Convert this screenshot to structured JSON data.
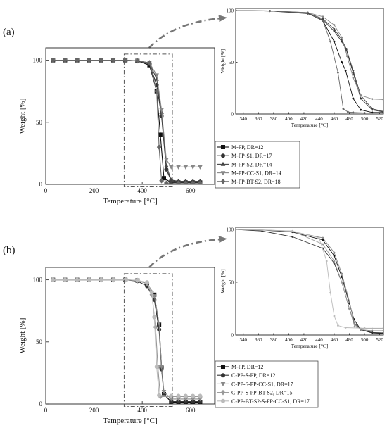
{
  "figure": {
    "panel_labels": [
      "(a)",
      "(b)"
    ]
  },
  "chart_data": [
    {
      "type": "line",
      "panel": "(a)",
      "xlabel": "Temperature [°C]",
      "ylabel": "Weight [%]",
      "xlim": [
        0,
        700
      ],
      "ylim": [
        0,
        110
      ],
      "xticks": [
        0,
        200,
        400,
        600
      ],
      "yticks": [
        0,
        50,
        100
      ],
      "legend_position": "bottom-right",
      "zoom_box": {
        "x": [
          325,
          525
        ],
        "y": [
          -2,
          105
        ]
      },
      "series": [
        {
          "name": "M-PP, DR=12",
          "color": "#111111",
          "marker": "square",
          "x": [
            30,
            80,
            130,
            180,
            230,
            280,
            330,
            380,
            430,
            460,
            475,
            490,
            520,
            550,
            580,
            610,
            640
          ],
          "y": [
            100,
            100,
            100,
            100,
            100,
            100,
            100,
            99.5,
            96,
            75,
            40,
            5,
            1.5,
            1.5,
            1.5,
            1.5,
            1.5
          ]
        },
        {
          "name": "M-PP-S1, DR=17",
          "color": "#333333",
          "marker": "circle",
          "x": [
            30,
            80,
            130,
            180,
            230,
            280,
            330,
            380,
            430,
            460,
            480,
            500,
            520,
            550,
            580,
            610,
            640
          ],
          "y": [
            100,
            100,
            100,
            100,
            100,
            100,
            100,
            99.5,
            97,
            80,
            55,
            12,
            3,
            2,
            2,
            2,
            2
          ]
        },
        {
          "name": "M-PP-S2, DR=14",
          "color": "#444444",
          "marker": "triangle-up",
          "x": [
            30,
            80,
            130,
            180,
            230,
            280,
            330,
            380,
            430,
            460,
            480,
            500,
            520,
            550,
            580,
            610,
            640
          ],
          "y": [
            100,
            100,
            100,
            100,
            100,
            100,
            100,
            99.5,
            97.5,
            85,
            58,
            15,
            3.5,
            2.5,
            2.5,
            2.5,
            2.5
          ]
        },
        {
          "name": "M-PP-CC-S1, DR=14",
          "color": "#888888",
          "marker": "triangle-down",
          "x": [
            30,
            80,
            130,
            180,
            230,
            280,
            330,
            380,
            430,
            460,
            480,
            500,
            520,
            550,
            580,
            610,
            640
          ],
          "y": [
            100,
            100,
            100,
            100,
            100,
            100,
            100,
            99.6,
            98,
            88,
            60,
            20,
            14,
            14,
            14,
            14,
            14
          ]
        },
        {
          "name": "M-PP-BT-S2, DR=18",
          "color": "#666666",
          "marker": "diamond",
          "x": [
            30,
            80,
            130,
            180,
            230,
            280,
            330,
            380,
            430,
            460,
            470,
            480,
            500,
            550,
            580,
            610,
            640
          ],
          "y": [
            100,
            100,
            100,
            100,
            100,
            100,
            100,
            99.6,
            98,
            75,
            30,
            3,
            1,
            1,
            1,
            1,
            1
          ]
        }
      ]
    },
    {
      "type": "line",
      "panel": "(a) inset",
      "xlabel": "Temperature [°C]",
      "ylabel": "Weight [%]",
      "xlim": [
        330,
        525
      ],
      "ylim": [
        0,
        102
      ],
      "xticks": [
        340,
        360,
        380,
        400,
        420,
        440,
        460,
        480,
        500,
        520
      ],
      "yticks": [
        0,
        50,
        100
      ],
      "series": [
        {
          "name": "M-PP, DR=12",
          "color": "#111111",
          "x": [
            330,
            375,
            425,
            445,
            460,
            470,
            475,
            485,
            495,
            510,
            525
          ],
          "y": [
            100,
            99.5,
            97.5,
            90,
            70,
            50,
            42,
            15,
            4,
            1.5,
            1.5
          ]
        },
        {
          "name": "M-PP-S1, DR=17",
          "color": "#333333",
          "x": [
            330,
            375,
            425,
            445,
            460,
            470,
            476,
            485,
            495,
            510,
            525
          ],
          "y": [
            100,
            99.5,
            97,
            91,
            80,
            70,
            62,
            40,
            15,
            4,
            2
          ]
        },
        {
          "name": "M-PP-S2, DR=14",
          "color": "#444444",
          "x": [
            330,
            375,
            425,
            445,
            460,
            470,
            476,
            485,
            495,
            510,
            525
          ],
          "y": [
            100,
            99.6,
            97.5,
            92,
            82,
            72,
            63,
            42,
            18,
            5,
            2.5
          ]
        },
        {
          "name": "M-PP-CC-S1, DR=14",
          "color": "#888888",
          "x": [
            330,
            375,
            425,
            445,
            460,
            470,
            477,
            485,
            495,
            510,
            525
          ],
          "y": [
            100,
            99.6,
            98,
            94,
            86,
            74,
            56,
            35,
            18,
            14.5,
            14
          ]
        },
        {
          "name": "M-PP-BT-S2, DR=18",
          "color": "#666666",
          "x": [
            330,
            375,
            425,
            445,
            455,
            465,
            472,
            478,
            485,
            500,
            525
          ],
          "y": [
            100,
            99.6,
            98,
            90,
            70,
            40,
            5,
            2,
            1.5,
            1,
            1
          ]
        }
      ]
    },
    {
      "type": "line",
      "panel": "(b)",
      "xlabel": "Temperature [°C]",
      "ylabel": "Weight [%]",
      "xlim": [
        0,
        700
      ],
      "ylim": [
        0,
        110
      ],
      "xticks": [
        0,
        200,
        400,
        600
      ],
      "yticks": [
        0,
        50,
        100
      ],
      "legend_position": "bottom-right",
      "zoom_box": {
        "x": [
          325,
          525
        ],
        "y": [
          -2,
          105
        ]
      },
      "series": [
        {
          "name": "M-PP, DR=12",
          "color": "#111111",
          "marker": "square",
          "x": [
            30,
            80,
            130,
            180,
            230,
            280,
            330,
            380,
            420,
            450,
            470,
            480,
            490,
            520,
            550,
            580,
            610,
            640
          ],
          "y": [
            100,
            100,
            100,
            100,
            100,
            100,
            100,
            99.5,
            97,
            88,
            64,
            30,
            8,
            1.5,
            1.5,
            1.5,
            1.5,
            1.5
          ]
        },
        {
          "name": "C-PP-S-PP, DR=12",
          "color": "#333333",
          "marker": "circle",
          "x": [
            30,
            80,
            130,
            180,
            230,
            280,
            330,
            380,
            420,
            450,
            470,
            480,
            490,
            520,
            550,
            580,
            610,
            640
          ],
          "y": [
            100,
            100,
            100,
            100,
            100,
            100,
            100,
            99,
            95,
            84,
            60,
            28,
            8,
            2,
            2,
            2,
            2,
            2
          ]
        },
        {
          "name": "C-PP-S-PP-CC-S1, DR=17",
          "color": "#888888",
          "marker": "triangle-down",
          "x": [
            30,
            80,
            130,
            180,
            230,
            280,
            330,
            380,
            420,
            450,
            470,
            480,
            490,
            520,
            550,
            580,
            610,
            640
          ],
          "y": [
            100,
            100,
            100,
            100,
            100,
            100,
            100,
            99.5,
            97,
            87,
            65,
            30,
            10,
            4,
            4,
            4,
            4,
            4
          ]
        },
        {
          "name": "C-PP-S-PP-BT-S2, DR=15",
          "color": "#999999",
          "marker": "diamond",
          "x": [
            30,
            80,
            130,
            180,
            230,
            280,
            330,
            380,
            420,
            440,
            455,
            465,
            475,
            520,
            550,
            580,
            610,
            640
          ],
          "y": [
            100,
            100,
            100,
            100,
            100,
            100,
            100,
            99.5,
            97,
            88,
            62,
            30,
            6,
            6,
            6,
            6,
            6,
            6
          ]
        },
        {
          "name": "C-PP-BT-S2-S-PP-CC-S1, DR=17",
          "color": "#bbbbbb",
          "marker": "circle",
          "x": [
            30,
            80,
            130,
            180,
            230,
            280,
            330,
            380,
            420,
            440,
            450,
            460,
            470,
            520,
            550,
            580,
            610,
            640
          ],
          "y": [
            100,
            100,
            100,
            100,
            100,
            100,
            100,
            99.6,
            98,
            90,
            70,
            30,
            7,
            6.5,
            6.5,
            6.5,
            6.5,
            6.5
          ]
        }
      ]
    },
    {
      "type": "line",
      "panel": "(b) inset",
      "xlabel": "Temperature [°C]",
      "ylabel": "Weight [%]",
      "xlim": [
        330,
        525
      ],
      "ylim": [
        0,
        102
      ],
      "xticks": [
        340,
        360,
        380,
        400,
        420,
        440,
        460,
        480,
        500,
        520
      ],
      "yticks": [
        0,
        50,
        100
      ],
      "series": [
        {
          "name": "M-PP, DR=12",
          "color": "#111111",
          "x": [
            330,
            365,
            405,
            445,
            460,
            470,
            480,
            486,
            495,
            510,
            525
          ],
          "y": [
            100,
            99.5,
            97.5,
            90,
            75,
            55,
            30,
            15,
            5,
            2,
            1.5
          ]
        },
        {
          "name": "C-PP-S-PP, DR=12",
          "color": "#333333",
          "x": [
            330,
            365,
            405,
            445,
            460,
            470,
            480,
            486,
            495,
            510,
            525
          ],
          "y": [
            100,
            98.5,
            93,
            82,
            68,
            50,
            25,
            12,
            5,
            2.5,
            2
          ]
        },
        {
          "name": "C-PP-S-PP-CC-S1, DR=17",
          "color": "#888888",
          "x": [
            330,
            365,
            405,
            445,
            460,
            470,
            480,
            487,
            495,
            510,
            525
          ],
          "y": [
            100,
            99.5,
            98,
            92,
            78,
            58,
            32,
            10,
            5,
            4,
            4
          ]
        },
        {
          "name": "C-PP-S-PP-BT-S2, DR=15",
          "color": "#999999",
          "x": [
            330,
            365,
            405,
            445,
            460,
            470,
            480,
            487,
            495,
            510,
            525
          ],
          "y": [
            100,
            99.5,
            98.5,
            86,
            70,
            50,
            25,
            8,
            6,
            6,
            6
          ]
        },
        {
          "name": "C-PP-BT-S2-S-PP-CC-S1, DR=17",
          "color": "#bbbbbb",
          "x": [
            330,
            365,
            405,
            440,
            450,
            455,
            460,
            465,
            475,
            500,
            525
          ],
          "y": [
            100,
            99.6,
            98.5,
            92,
            70,
            40,
            18,
            9,
            7,
            6.5,
            6.5
          ]
        }
      ]
    }
  ]
}
